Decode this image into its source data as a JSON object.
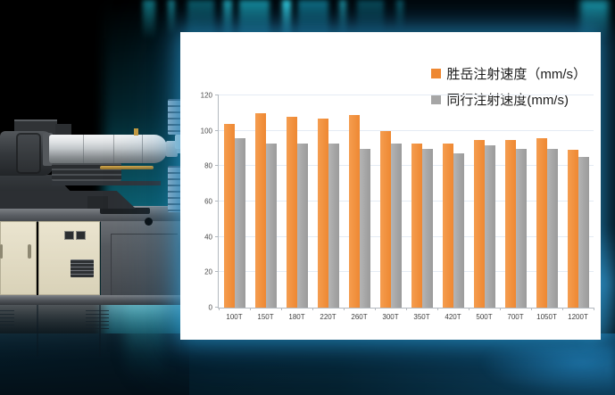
{
  "page": {
    "type": "marketing-graphic",
    "machine_alt": "injection molding machine photo on teal glow background"
  },
  "chart_data": {
    "type": "bar",
    "title": "",
    "xlabel": "",
    "ylabel": "",
    "categories": [
      "100T",
      "150T",
      "180T",
      "220T",
      "260T",
      "300T",
      "350T",
      "420T",
      "500T",
      "700T",
      "1050T",
      "1200T"
    ],
    "series": [
      {
        "name": "胜岳注射速度（mm/s）",
        "color": "#EE8832",
        "values": [
          104,
          110,
          108,
          107,
          109,
          100,
          93,
          93,
          95,
          95,
          96,
          89
        ]
      },
      {
        "name": "同行注射速度(mm/s)",
        "color": "#A6A6A6",
        "values": [
          96,
          93,
          93,
          93,
          90,
          93,
          90,
          87,
          92,
          90,
          90,
          85
        ]
      }
    ],
    "ylim": [
      0,
      120
    ],
    "yticks": [
      0,
      20,
      40,
      60,
      80,
      100,
      120
    ],
    "grid": true,
    "legend_position": "top-right",
    "colors": {
      "series_a": "#EE8832",
      "series_b": "#A6A6A6",
      "gridline": "#E4EBF4",
      "axis": "#B3B9BF",
      "tick_text": "#404040",
      "panel_bg": "#FFFFFF",
      "glow_accent": "#2DAAE6"
    }
  }
}
